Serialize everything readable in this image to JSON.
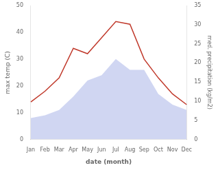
{
  "chart_data": {
    "type": "line",
    "xlabel": "date (month)",
    "ylabel": "max temp (C)",
    "y2label": "med. precipitation (kg/m2)",
    "categories": [
      "Jan",
      "Feb",
      "Mar",
      "Apr",
      "May",
      "Jun",
      "Jul",
      "Aug",
      "Sep",
      "Oct",
      "Nov",
      "Dec"
    ],
    "series": [
      {
        "type": "area",
        "color": "#aab4e8",
        "values": [
          8,
          9,
          11,
          16,
          22,
          24,
          30,
          26,
          26,
          17,
          13,
          11
        ]
      },
      {
        "type": "line",
        "color": "#c0392b",
        "values": [
          14,
          18,
          23,
          34,
          32,
          38,
          44,
          43,
          30,
          23,
          17,
          13
        ]
      }
    ],
    "ylim": [
      0,
      50
    ],
    "yticks": [
      0,
      10,
      20,
      30,
      40,
      50
    ],
    "y2lim": [
      0,
      35
    ],
    "y2ticks": [
      0,
      5,
      10,
      15,
      20,
      25,
      30,
      35
    ],
    "grid": false
  }
}
